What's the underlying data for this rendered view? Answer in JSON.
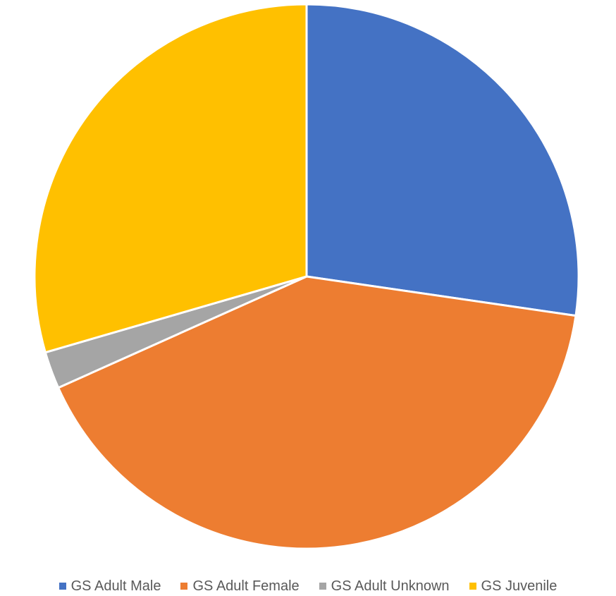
{
  "chart_data": {
    "type": "pie",
    "categories": [
      "GS Adult Male",
      "GS Adult Female",
      "GS Adult Unknown",
      "GS Juvenile"
    ],
    "values": [
      27.3,
      41.0,
      2.2,
      29.5
    ],
    "colors": [
      "#4472C4",
      "#ED7D31",
      "#A5A5A5",
      "#FFC000"
    ],
    "start_angle_deg": 0,
    "direction": "clockwise",
    "legend_position": "bottom"
  }
}
